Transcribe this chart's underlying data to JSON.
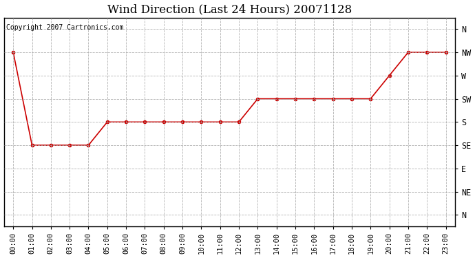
{
  "title": "Wind Direction (Last 24 Hours) 20071128",
  "copyright": "Copyright 2007 Cartronics.com",
  "x_labels": [
    "00:00",
    "01:00",
    "02:00",
    "03:00",
    "04:00",
    "05:00",
    "06:00",
    "07:00",
    "08:00",
    "09:00",
    "10:00",
    "11:00",
    "12:00",
    "13:00",
    "14:00",
    "15:00",
    "16:00",
    "17:00",
    "18:00",
    "19:00",
    "20:00",
    "21:00",
    "22:00",
    "23:00"
  ],
  "x_values": [
    0,
    1,
    2,
    3,
    4,
    5,
    6,
    7,
    8,
    9,
    10,
    11,
    12,
    13,
    14,
    15,
    16,
    17,
    18,
    19,
    20,
    21,
    22,
    23
  ],
  "direction_labels": [
    "N",
    "NW",
    "W",
    "SW",
    "S",
    "SE",
    "E",
    "NE",
    "N"
  ],
  "direction_positions": [
    8,
    7,
    6,
    5,
    4,
    3,
    2,
    1,
    0
  ],
  "y_values": [
    7,
    3,
    3,
    3,
    3,
    4,
    4,
    4,
    4,
    4,
    4,
    4,
    4,
    5,
    5,
    5,
    5,
    5,
    5,
    5,
    6,
    7,
    7,
    7
  ],
  "ylim_min": -0.5,
  "ylim_max": 8.5,
  "line_color": "#cc0000",
  "marker": "o",
  "marker_size": 3,
  "bg_color": "#ffffff",
  "grid_color": "#aaaaaa",
  "title_fontsize": 12,
  "copyright_fontsize": 7,
  "tick_fontsize": 7.5
}
